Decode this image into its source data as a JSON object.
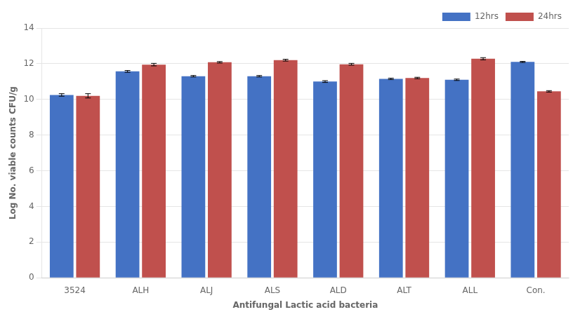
{
  "chart_data": {
    "type": "bar",
    "categories": [
      "3524",
      "ALH",
      "ALJ",
      "ALS",
      "ALD",
      "ALT",
      "ALL",
      "Con."
    ],
    "series": [
      {
        "name": "12hrs",
        "color": "#4472C4",
        "values": [
          10.25,
          11.57,
          11.3,
          11.3,
          11.0,
          11.15,
          11.1,
          12.1
        ],
        "errors": [
          0.07,
          0.05,
          0.04,
          0.04,
          0.05,
          0.04,
          0.04,
          0.03
        ]
      },
      {
        "name": "24hrs",
        "color": "#C0504D",
        "values": [
          10.2,
          11.95,
          12.08,
          12.2,
          11.97,
          11.2,
          12.28,
          10.45
        ],
        "errors": [
          0.12,
          0.07,
          0.04,
          0.05,
          0.05,
          0.04,
          0.06,
          0.04
        ]
      }
    ],
    "xlabel": "Antifungal Lactic acid bacteria",
    "ylabel": "Log No. viable counts CFU/g",
    "ylim": [
      0,
      14
    ],
    "yticks": [
      0,
      2,
      4,
      6,
      8,
      10,
      12,
      14
    ],
    "grid": true,
    "legend": "upper right"
  }
}
